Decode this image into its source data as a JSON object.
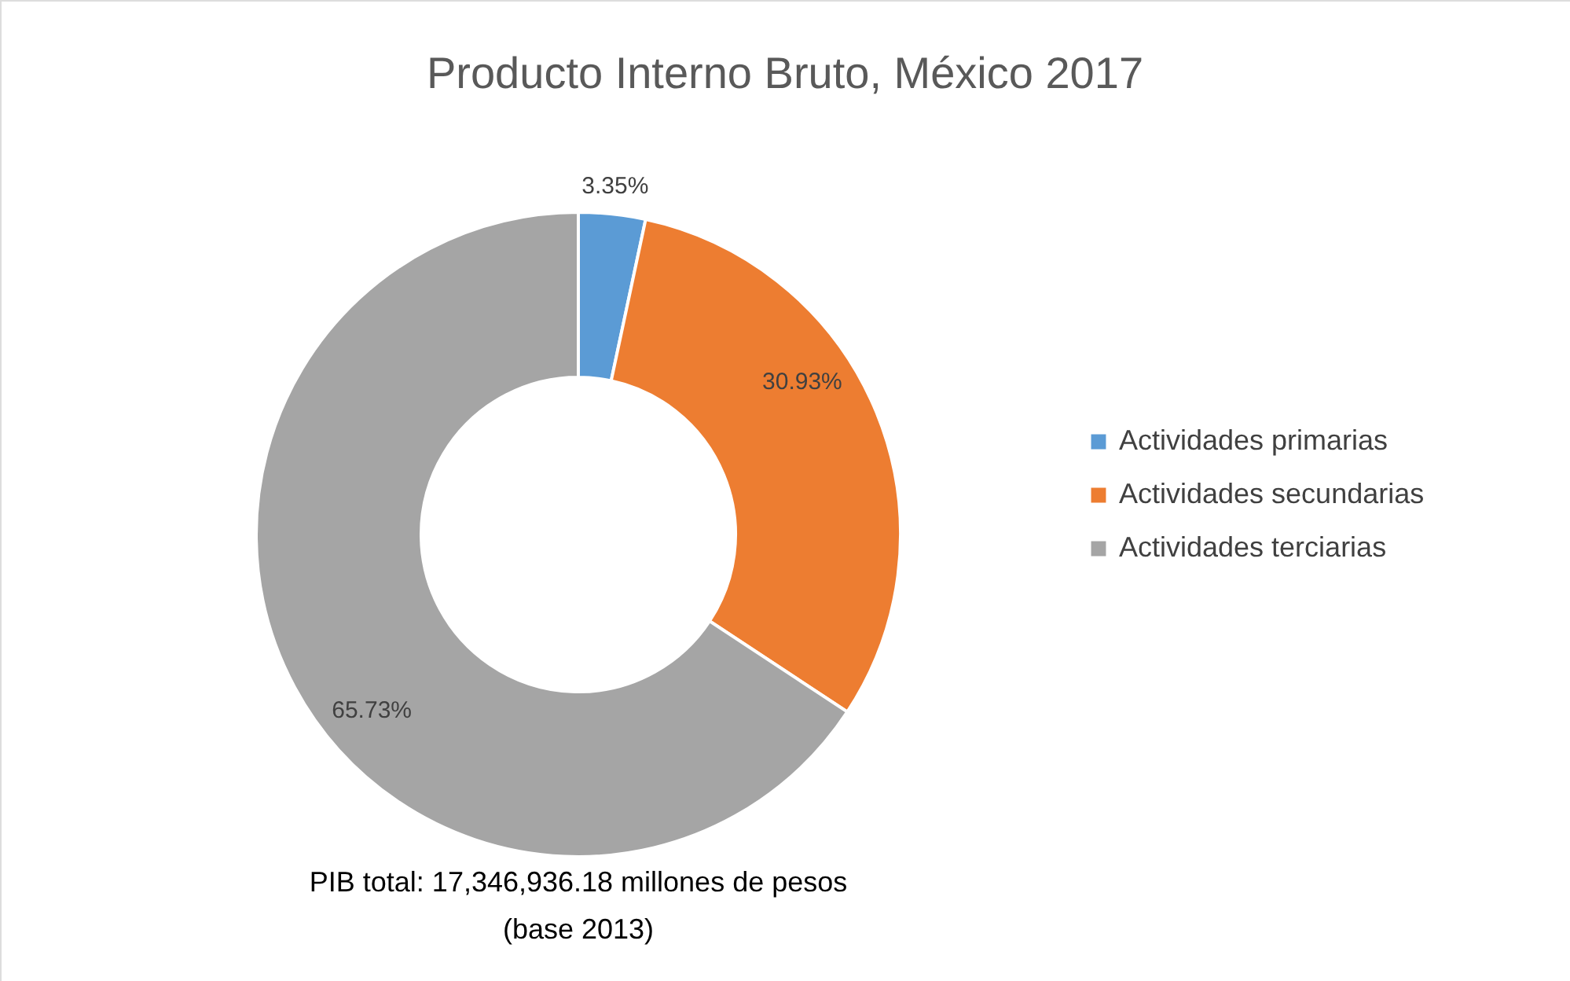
{
  "chart_data": {
    "type": "donut",
    "title": "Producto Interno Bruto, México 2017",
    "categories": [
      "Actividades primarias",
      "Actividades secundarias",
      "Actividades terciarias"
    ],
    "values": [
      3.35,
      30.93,
      65.73
    ],
    "colors": [
      "#5b9bd5",
      "#ed7d31",
      "#a5a5a5"
    ],
    "value_labels": [
      "3.35%",
      "30.93%",
      "65.73%"
    ],
    "legend": "right",
    "annotations": [
      "PIB total: 17,346,936.18 millones de pesos",
      "(base 2013)"
    ]
  }
}
